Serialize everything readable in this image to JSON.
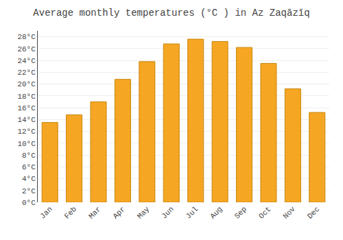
{
  "chart_data": {
    "type": "bar",
    "title": "Average monthly temperatures (°C ) in Az Zaqāzīq",
    "categories": [
      "Jan",
      "Feb",
      "Mar",
      "Apr",
      "May",
      "Jun",
      "Jul",
      "Aug",
      "Sep",
      "Oct",
      "Nov",
      "Dec"
    ],
    "values": [
      13.5,
      14.8,
      17.0,
      20.8,
      23.8,
      26.8,
      27.6,
      27.2,
      26.2,
      23.5,
      19.2,
      15.2
    ],
    "color": "#F5A623",
    "ylim": [
      0,
      29
    ],
    "yticks": [
      {
        "value": 0,
        "label": "0°C"
      },
      {
        "value": 2,
        "label": "2°C"
      },
      {
        "value": 4,
        "label": "4°C"
      },
      {
        "value": 6,
        "label": "6°C"
      },
      {
        "value": 8,
        "label": "8°C"
      },
      {
        "value": 10,
        "label": "10°C"
      },
      {
        "value": 12,
        "label": "12°C"
      },
      {
        "value": 14,
        "label": "14°C"
      },
      {
        "value": 16,
        "label": "16°C"
      },
      {
        "value": 18,
        "label": "18°C"
      },
      {
        "value": 20,
        "label": "20°C"
      },
      {
        "value": 22,
        "label": "22°C"
      },
      {
        "value": 24,
        "label": "24°C"
      },
      {
        "value": 26,
        "label": "26°C"
      },
      {
        "value": 28,
        "label": "28°C"
      }
    ],
    "grid": true
  }
}
